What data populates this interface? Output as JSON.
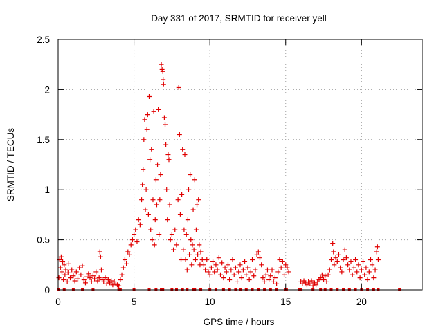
{
  "chart_data": {
    "type": "scatter",
    "title": "Day 331 of 2017, SRMTID for receiver yell",
    "xlabel": "GPS time / hours",
    "ylabel": "SRMTID / TECUs",
    "xlim": [
      0,
      24
    ],
    "ylim": [
      0,
      2.5
    ],
    "grid": true,
    "marker": "+",
    "color": "#e00000",
    "x_ticks": [
      {
        "value": 0,
        "label": "0"
      },
      {
        "value": 5,
        "label": "5"
      },
      {
        "value": 10,
        "label": "10"
      },
      {
        "value": 15,
        "label": "15"
      },
      {
        "value": 20,
        "label": "20"
      }
    ],
    "y_ticks": [
      {
        "value": 0,
        "label": "0"
      },
      {
        "value": 0.5,
        "label": "0.5"
      },
      {
        "value": 1,
        "label": "1"
      },
      {
        "value": 1.5,
        "label": "1.5"
      },
      {
        "value": 2,
        "label": "2"
      },
      {
        "value": 2.5,
        "label": "2.5"
      }
    ],
    "series": [
      {
        "name": "SRMTID",
        "points": [
          [
            0.05,
            0.12
          ],
          [
            0.1,
            0.3
          ],
          [
            0.15,
            0.22
          ],
          [
            0.2,
            0.33
          ],
          [
            0.25,
            0.18
          ],
          [
            0.3,
            0.28
          ],
          [
            0.35,
            0.1
          ],
          [
            0.4,
            0.25
          ],
          [
            0.45,
            0.15
          ],
          [
            0.5,
            0.2
          ],
          [
            0.6,
            0.08
          ],
          [
            0.65,
            0.17
          ],
          [
            0.7,
            0.26
          ],
          [
            0.8,
            0.12
          ],
          [
            0.9,
            0.2
          ],
          [
            1.0,
            0.14
          ],
          [
            1.1,
            0.09
          ],
          [
            1.2,
            0.18
          ],
          [
            1.3,
            0.11
          ],
          [
            1.4,
            0.22
          ],
          [
            1.5,
            0.15
          ],
          [
            1.6,
            0.24
          ],
          [
            1.7,
            0.1
          ],
          [
            1.8,
            0.07
          ],
          [
            1.9,
            0.13
          ],
          [
            2.0,
            0.16
          ],
          [
            2.1,
            0.12
          ],
          [
            2.2,
            0.08
          ],
          [
            2.3,
            0.14
          ],
          [
            2.4,
            0.11
          ],
          [
            2.5,
            0.18
          ],
          [
            2.6,
            0.09
          ],
          [
            2.7,
            0.12
          ],
          [
            2.75,
            0.38
          ],
          [
            2.8,
            0.33
          ],
          [
            2.85,
            0.2
          ],
          [
            2.9,
            0.1
          ],
          [
            3.0,
            0.08
          ],
          [
            3.1,
            0.12
          ],
          [
            3.2,
            0.06
          ],
          [
            3.3,
            0.1
          ],
          [
            3.4,
            0.07
          ],
          [
            3.5,
            0.09
          ],
          [
            3.6,
            0.05
          ],
          [
            3.7,
            0.08
          ],
          [
            3.8,
            0.06
          ],
          [
            3.9,
            0.05
          ],
          [
            4.0,
            0.04
          ],
          [
            4.1,
            0.1
          ],
          [
            4.2,
            0.15
          ],
          [
            4.3,
            0.22
          ],
          [
            4.4,
            0.3
          ],
          [
            4.5,
            0.26
          ],
          [
            4.6,
            0.38
          ],
          [
            4.7,
            0.35
          ],
          [
            4.8,
            0.45
          ],
          [
            4.9,
            0.5
          ],
          [
            5.0,
            0.55
          ],
          [
            5.1,
            0.6
          ],
          [
            5.2,
            0.48
          ],
          [
            5.3,
            0.7
          ],
          [
            5.4,
            0.65
          ],
          [
            5.5,
            0.9
          ],
          [
            5.55,
            1.05
          ],
          [
            5.6,
            1.2
          ],
          [
            5.65,
            1.5
          ],
          [
            5.7,
            1.7
          ],
          [
            5.75,
            0.8
          ],
          [
            5.8,
            1.0
          ],
          [
            5.85,
            1.6
          ],
          [
            5.9,
            1.75
          ],
          [
            5.95,
            0.75
          ],
          [
            6.0,
            1.93
          ],
          [
            6.05,
            1.3
          ],
          [
            6.1,
            0.6
          ],
          [
            6.15,
            1.4
          ],
          [
            6.2,
            0.5
          ],
          [
            6.25,
            0.9
          ],
          [
            6.3,
            1.78
          ],
          [
            6.35,
            0.45
          ],
          [
            6.4,
            0.7
          ],
          [
            6.45,
            1.1
          ],
          [
            6.5,
            0.85
          ],
          [
            6.55,
            1.25
          ],
          [
            6.6,
            1.8
          ],
          [
            6.65,
            0.55
          ],
          [
            6.7,
            0.9
          ],
          [
            6.75,
            1.15
          ],
          [
            6.8,
            2.25
          ],
          [
            6.85,
            2.2
          ],
          [
            6.9,
            2.18
          ],
          [
            6.92,
            2.1
          ],
          [
            6.95,
            2.05
          ],
          [
            7.0,
            1.72
          ],
          [
            7.05,
            1.65
          ],
          [
            7.1,
            1.45
          ],
          [
            7.15,
            1.0
          ],
          [
            7.2,
            0.7
          ],
          [
            7.25,
            1.35
          ],
          [
            7.3,
            1.3
          ],
          [
            7.35,
            0.85
          ],
          [
            7.4,
            0.5
          ],
          [
            7.5,
            0.55
          ],
          [
            7.6,
            0.4
          ],
          [
            7.7,
            0.6
          ],
          [
            7.8,
            0.45
          ],
          [
            7.9,
            0.9
          ],
          [
            7.95,
            2.02
          ],
          [
            8.0,
            1.55
          ],
          [
            8.05,
            0.75
          ],
          [
            8.1,
            0.3
          ],
          [
            8.15,
            0.95
          ],
          [
            8.2,
            1.4
          ],
          [
            8.25,
            0.4
          ],
          [
            8.3,
            0.6
          ],
          [
            8.35,
            1.35
          ],
          [
            8.4,
            0.3
          ],
          [
            8.45,
            0.55
          ],
          [
            8.5,
            0.2
          ],
          [
            8.55,
            0.7
          ],
          [
            8.6,
            1.0
          ],
          [
            8.65,
            0.35
          ],
          [
            8.7,
            1.15
          ],
          [
            8.75,
            0.5
          ],
          [
            8.8,
            0.25
          ],
          [
            8.85,
            0.45
          ],
          [
            8.9,
            0.8
          ],
          [
            8.95,
            0.4
          ],
          [
            9.0,
            1.1
          ],
          [
            9.05,
            0.3
          ],
          [
            9.1,
            0.6
          ],
          [
            9.15,
            0.85
          ],
          [
            9.2,
            0.35
          ],
          [
            9.25,
            0.9
          ],
          [
            9.3,
            0.45
          ],
          [
            9.35,
            0.25
          ],
          [
            9.4,
            0.38
          ],
          [
            9.5,
            0.3
          ],
          [
            9.6,
            0.25
          ],
          [
            9.7,
            0.2
          ],
          [
            9.8,
            0.3
          ],
          [
            9.9,
            0.18
          ],
          [
            10.0,
            0.15
          ],
          [
            10.1,
            0.22
          ],
          [
            10.2,
            0.28
          ],
          [
            10.3,
            0.18
          ],
          [
            10.4,
            0.25
          ],
          [
            10.5,
            0.2
          ],
          [
            10.6,
            0.32
          ],
          [
            10.7,
            0.15
          ],
          [
            10.8,
            0.27
          ],
          [
            10.9,
            0.12
          ],
          [
            11.0,
            0.22
          ],
          [
            11.1,
            0.18
          ],
          [
            11.2,
            0.25
          ],
          [
            11.3,
            0.1
          ],
          [
            11.4,
            0.2
          ],
          [
            11.5,
            0.3
          ],
          [
            11.6,
            0.15
          ],
          [
            11.7,
            0.22
          ],
          [
            11.8,
            0.08
          ],
          [
            11.9,
            0.18
          ],
          [
            12.0,
            0.25
          ],
          [
            12.1,
            0.12
          ],
          [
            12.2,
            0.2
          ],
          [
            12.3,
            0.28
          ],
          [
            12.4,
            0.15
          ],
          [
            12.5,
            0.22
          ],
          [
            12.6,
            0.1
          ],
          [
            12.7,
            0.18
          ],
          [
            12.8,
            0.3
          ],
          [
            12.9,
            0.14
          ],
          [
            13.0,
            0.2
          ],
          [
            13.1,
            0.35
          ],
          [
            13.2,
            0.38
          ],
          [
            13.3,
            0.32
          ],
          [
            13.4,
            0.25
          ],
          [
            13.5,
            0.12
          ],
          [
            13.6,
            0.08
          ],
          [
            13.7,
            0.15
          ],
          [
            13.8,
            0.2
          ],
          [
            13.9,
            0.1
          ],
          [
            14.0,
            0.14
          ],
          [
            14.1,
            0.2
          ],
          [
            14.2,
            0.08
          ],
          [
            14.3,
            0.12
          ],
          [
            14.4,
            0.06
          ],
          [
            14.5,
            0.18
          ],
          [
            14.6,
            0.3
          ],
          [
            14.7,
            0.22
          ],
          [
            14.8,
            0.28
          ],
          [
            14.9,
            0.15
          ],
          [
            15.0,
            0.25
          ],
          [
            15.1,
            0.22
          ],
          [
            15.2,
            0.18
          ],
          [
            16.0,
            0.08
          ],
          [
            16.1,
            0.06
          ],
          [
            16.2,
            0.09
          ],
          [
            16.3,
            0.07
          ],
          [
            16.4,
            0.05
          ],
          [
            16.5,
            0.08
          ],
          [
            16.6,
            0.06
          ],
          [
            16.7,
            0.09
          ],
          [
            16.8,
            0.04
          ],
          [
            16.9,
            0.07
          ],
          [
            17.0,
            0.05
          ],
          [
            17.1,
            0.08
          ],
          [
            17.2,
            0.1
          ],
          [
            17.3,
            0.12
          ],
          [
            17.4,
            0.15
          ],
          [
            17.5,
            0.1
          ],
          [
            17.6,
            0.14
          ],
          [
            17.7,
            0.08
          ],
          [
            17.8,
            0.15
          ],
          [
            17.9,
            0.2
          ],
          [
            18.0,
            0.3
          ],
          [
            18.1,
            0.46
          ],
          [
            18.15,
            0.38
          ],
          [
            18.2,
            0.25
          ],
          [
            18.3,
            0.32
          ],
          [
            18.4,
            0.28
          ],
          [
            18.5,
            0.35
          ],
          [
            18.6,
            0.22
          ],
          [
            18.7,
            0.18
          ],
          [
            18.8,
            0.3
          ],
          [
            18.9,
            0.4
          ],
          [
            19.0,
            0.32
          ],
          [
            19.1,
            0.25
          ],
          [
            19.2,
            0.2
          ],
          [
            19.3,
            0.28
          ],
          [
            19.4,
            0.15
          ],
          [
            19.5,
            0.22
          ],
          [
            19.6,
            0.3
          ],
          [
            19.7,
            0.18
          ],
          [
            19.8,
            0.25
          ],
          [
            19.9,
            0.12
          ],
          [
            20.0,
            0.2
          ],
          [
            20.1,
            0.28
          ],
          [
            20.2,
            0.15
          ],
          [
            20.3,
            0.22
          ],
          [
            20.4,
            0.1
          ],
          [
            20.5,
            0.18
          ],
          [
            20.6,
            0.3
          ],
          [
            20.7,
            0.25
          ],
          [
            20.8,
            0.12
          ],
          [
            20.9,
            0.2
          ],
          [
            21.0,
            0.38
          ],
          [
            21.05,
            0.43
          ],
          [
            21.1,
            0.3
          ]
        ],
        "zero_points": [
          0.0,
          0.4,
          1.0,
          1.6,
          2.3,
          4.0,
          4.05,
          4.1,
          5.0,
          6.0,
          6.45,
          6.8,
          6.9,
          7.5,
          7.8,
          8.2,
          8.5,
          8.9,
          9.0,
          9.4,
          10.0,
          10.4,
          10.9,
          11.3,
          11.7,
          12.0,
          12.4,
          12.8,
          13.2,
          13.6,
          14.0,
          14.4,
          15.0,
          15.05,
          15.9,
          16.0,
          16.8,
          17.3,
          17.6,
          18.0,
          18.4,
          18.8,
          19.2,
          19.6,
          20.0,
          20.4,
          20.8,
          21.1,
          22.5
        ]
      }
    ]
  }
}
